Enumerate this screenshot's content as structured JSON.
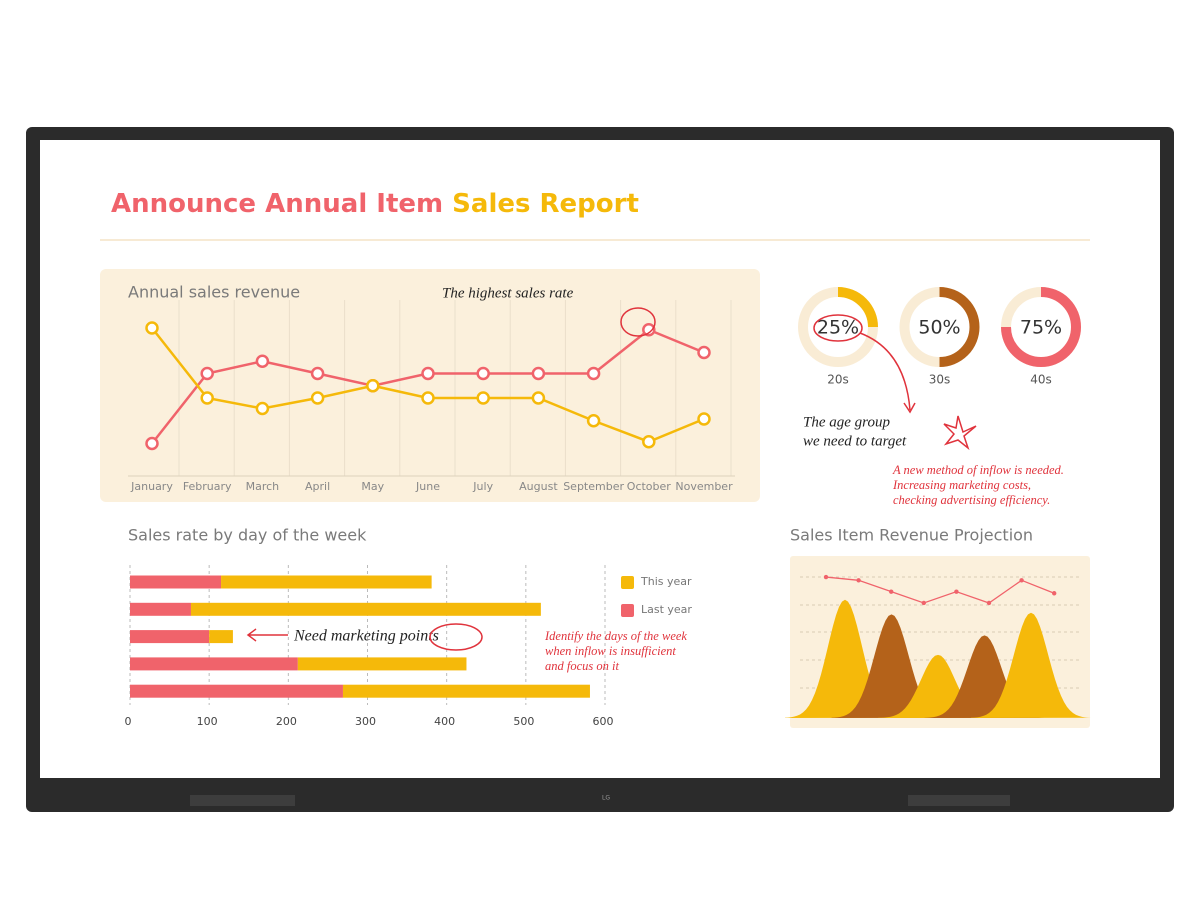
{
  "title": {
    "part1": "Announce Annual Item",
    "part2": "Sales Report"
  },
  "brand": "LG",
  "chart_data": [
    {
      "type": "line",
      "title": "Annual sales revenue",
      "categories": [
        "January",
        "February",
        "March",
        "April",
        "May",
        "June",
        "July",
        "August",
        "September",
        "October",
        "November"
      ],
      "series": [
        {
          "color": "#f0636b",
          "values": [
            18,
            58,
            65,
            58,
            51,
            58,
            58,
            58,
            58,
            83,
            70
          ]
        },
        {
          "color": "#f5b90a",
          "values": [
            84,
            44,
            38,
            44,
            51,
            44,
            44,
            44,
            31,
            19,
            32
          ]
        }
      ],
      "ylim": [
        0,
        100
      ],
      "grid": true,
      "annotation": "The highest sales rate"
    },
    {
      "type": "donut",
      "categories": [
        "20s",
        "30s",
        "40s"
      ],
      "values": [
        25,
        50,
        75
      ],
      "value_labels": [
        "25%",
        "50%",
        "75%"
      ],
      "colors": [
        "#f5b90a",
        "#b4621a",
        "#f0636b"
      ],
      "annotation": [
        "The age group",
        "we need to target"
      ],
      "note": [
        "A new method of inflow is needed.",
        "Increasing marketing costs,",
        "checking advertising efficiency."
      ]
    },
    {
      "type": "hbar",
      "title": "Sales rate by day of the week",
      "stacked": true,
      "categories": [
        null,
        null,
        null,
        null,
        null
      ],
      "series": [
        {
          "name": "This year",
          "color": "#f5b90a",
          "values": [
            266,
            442,
            30,
            213,
            312
          ]
        },
        {
          "name": "Last year",
          "color": "#f0636b",
          "values": [
            115,
            77,
            100,
            212,
            269
          ]
        }
      ],
      "xlim": [
        0,
        600
      ],
      "xticks": [
        0,
        100,
        200,
        300,
        400,
        500,
        600
      ],
      "grid": true,
      "annotation": "Need marketing points",
      "note": [
        "Identify the days of the week",
        "when inflow is insufficient",
        "and focus on it"
      ]
    },
    {
      "type": "area",
      "title": "Sales Item Revenue Projection",
      "line": {
        "color": "#f0636b",
        "values": [
          87,
          85,
          78,
          71,
          78,
          71,
          85,
          77
        ]
      },
      "peaks": {
        "colors": [
          "#f5b90a",
          "#b4621a",
          "#f5b90a",
          "#b4621a",
          "#f5b90a"
        ],
        "values": [
          73,
          64,
          39,
          51,
          65
        ]
      },
      "ylim": [
        0,
        100
      ]
    }
  ]
}
